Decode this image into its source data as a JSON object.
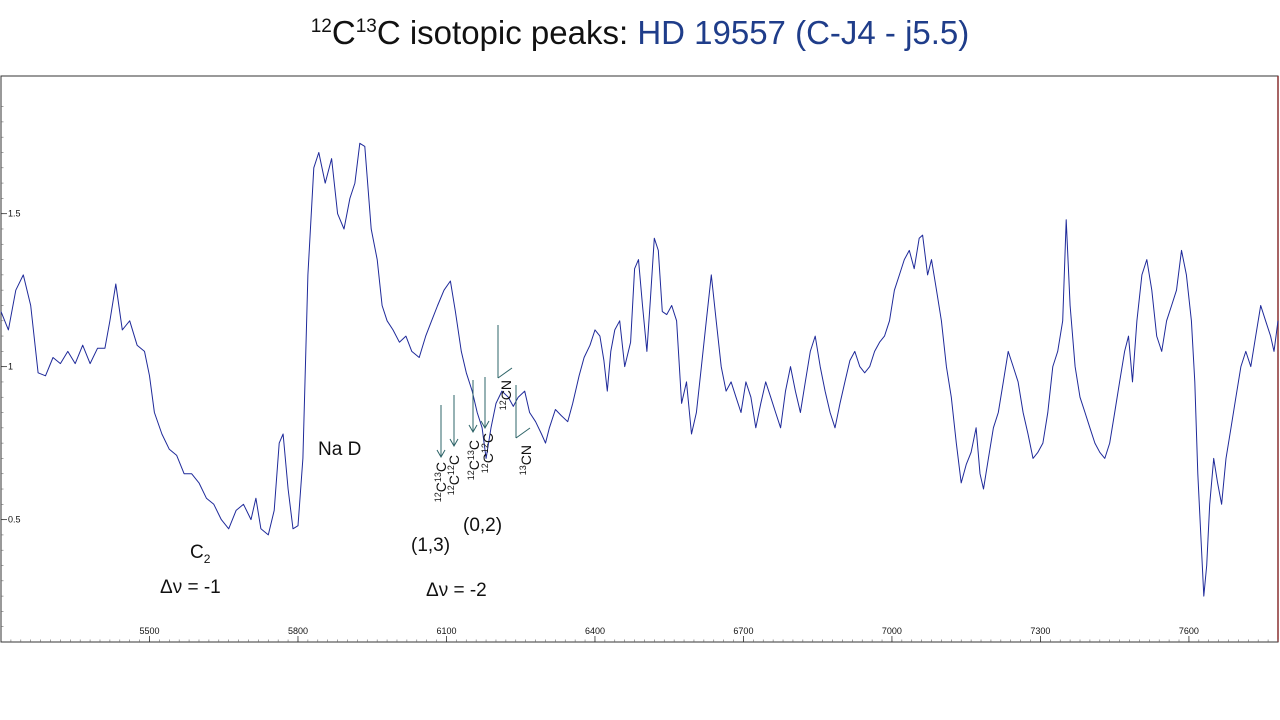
{
  "chart_data": {
    "type": "line",
    "title_parts": [
      {
        "text": "12",
        "sup": true
      },
      {
        "text": "C",
        "sup": false
      },
      {
        "text": "13",
        "sup": true
      },
      {
        "text": "C isotopic peaks: ",
        "sup": false
      }
    ],
    "title_accent": "HD 19557 (C-J4 - j5.5)",
    "xlim": [
      5200,
      7780
    ],
    "ylim": [
      0.1,
      1.95
    ],
    "x_ticks": [
      5500,
      5800,
      6100,
      6400,
      6700,
      7000,
      7300,
      7600
    ],
    "y_ticks": [
      0.5,
      1,
      1.5
    ],
    "y_tick_labels": [
      "0.5",
      "1",
      "1.5"
    ],
    "colors": {
      "line": "#1f2a9a",
      "arrow": "#2e6468",
      "accent": "#1f3d8a"
    },
    "series": [
      {
        "points": [
          [
            5200,
            1.18
          ],
          [
            5215,
            1.12
          ],
          [
            5230,
            1.25
          ],
          [
            5245,
            1.3
          ],
          [
            5260,
            1.2
          ],
          [
            5275,
            0.98
          ],
          [
            5290,
            0.97
          ],
          [
            5305,
            1.03
          ],
          [
            5320,
            1.01
          ],
          [
            5335,
            1.05
          ],
          [
            5350,
            1.01
          ],
          [
            5365,
            1.07
          ],
          [
            5380,
            1.01
          ],
          [
            5395,
            1.06
          ],
          [
            5410,
            1.06
          ],
          [
            5420,
            1.15
          ],
          [
            5432,
            1.27
          ],
          [
            5445,
            1.12
          ],
          [
            5460,
            1.15
          ],
          [
            5475,
            1.07
          ],
          [
            5490,
            1.05
          ],
          [
            5500,
            0.97
          ],
          [
            5510,
            0.85
          ],
          [
            5525,
            0.78
          ],
          [
            5540,
            0.73
          ],
          [
            5555,
            0.71
          ],
          [
            5570,
            0.65
          ],
          [
            5585,
            0.65
          ],
          [
            5600,
            0.62
          ],
          [
            5615,
            0.57
          ],
          [
            5630,
            0.55
          ],
          [
            5645,
            0.5
          ],
          [
            5660,
            0.47
          ],
          [
            5675,
            0.53
          ],
          [
            5690,
            0.55
          ],
          [
            5705,
            0.5
          ],
          [
            5715,
            0.57
          ],
          [
            5725,
            0.47
          ],
          [
            5740,
            0.45
          ],
          [
            5752,
            0.53
          ],
          [
            5762,
            0.75
          ],
          [
            5770,
            0.78
          ],
          [
            5780,
            0.6
          ],
          [
            5790,
            0.47
          ],
          [
            5800,
            0.48
          ],
          [
            5810,
            0.7
          ],
          [
            5820,
            1.3
          ],
          [
            5832,
            1.65
          ],
          [
            5842,
            1.7
          ],
          [
            5855,
            1.6
          ],
          [
            5868,
            1.68
          ],
          [
            5880,
            1.5
          ],
          [
            5893,
            1.45
          ],
          [
            5905,
            1.55
          ],
          [
            5915,
            1.6
          ],
          [
            5925,
            1.73
          ],
          [
            5935,
            1.72
          ],
          [
            5948,
            1.45
          ],
          [
            5960,
            1.35
          ],
          [
            5970,
            1.2
          ],
          [
            5980,
            1.15
          ],
          [
            5992,
            1.12
          ],
          [
            6005,
            1.08
          ],
          [
            6018,
            1.1
          ],
          [
            6030,
            1.05
          ],
          [
            6045,
            1.03
          ],
          [
            6058,
            1.1
          ],
          [
            6070,
            1.15
          ],
          [
            6082,
            1.2
          ],
          [
            6095,
            1.25
          ],
          [
            6108,
            1.28
          ],
          [
            6118,
            1.18
          ],
          [
            6130,
            1.05
          ],
          [
            6140,
            0.98
          ],
          [
            6152,
            0.92
          ],
          [
            6162,
            0.85
          ],
          [
            6172,
            0.8
          ],
          [
            6180,
            0.7
          ],
          [
            6190,
            0.8
          ],
          [
            6200,
            0.88
          ],
          [
            6212,
            0.92
          ],
          [
            6225,
            0.9
          ],
          [
            6235,
            0.87
          ],
          [
            6245,
            0.9
          ],
          [
            6258,
            0.92
          ],
          [
            6268,
            0.85
          ],
          [
            6280,
            0.82
          ],
          [
            6292,
            0.78
          ],
          [
            6300,
            0.75
          ],
          [
            6308,
            0.8
          ],
          [
            6320,
            0.86
          ],
          [
            6332,
            0.84
          ],
          [
            6345,
            0.82
          ],
          [
            6355,
            0.88
          ],
          [
            6368,
            0.97
          ],
          [
            6378,
            1.03
          ],
          [
            6390,
            1.07
          ],
          [
            6400,
            1.12
          ],
          [
            6410,
            1.1
          ],
          [
            6418,
            1.02
          ],
          [
            6425,
            0.92
          ],
          [
            6432,
            1.05
          ],
          [
            6440,
            1.12
          ],
          [
            6450,
            1.15
          ],
          [
            6460,
            1.0
          ],
          [
            6472,
            1.08
          ],
          [
            6480,
            1.32
          ],
          [
            6488,
            1.35
          ],
          [
            6496,
            1.2
          ],
          [
            6505,
            1.05
          ],
          [
            6512,
            1.22
          ],
          [
            6520,
            1.42
          ],
          [
            6528,
            1.38
          ],
          [
            6536,
            1.18
          ],
          [
            6545,
            1.17
          ],
          [
            6555,
            1.2
          ],
          [
            6565,
            1.15
          ],
          [
            6575,
            0.88
          ],
          [
            6585,
            0.95
          ],
          [
            6595,
            0.78
          ],
          [
            6605,
            0.85
          ],
          [
            6615,
            1.0
          ],
          [
            6625,
            1.15
          ],
          [
            6635,
            1.3
          ],
          [
            6645,
            1.15
          ],
          [
            6655,
            1.0
          ],
          [
            6665,
            0.92
          ],
          [
            6675,
            0.95
          ],
          [
            6685,
            0.9
          ],
          [
            6695,
            0.85
          ],
          [
            6705,
            0.95
          ],
          [
            6715,
            0.9
          ],
          [
            6725,
            0.8
          ],
          [
            6735,
            0.88
          ],
          [
            6745,
            0.95
          ],
          [
            6755,
            0.9
          ],
          [
            6765,
            0.85
          ],
          [
            6775,
            0.8
          ],
          [
            6785,
            0.92
          ],
          [
            6795,
            1.0
          ],
          [
            6805,
            0.92
          ],
          [
            6815,
            0.85
          ],
          [
            6825,
            0.95
          ],
          [
            6835,
            1.05
          ],
          [
            6845,
            1.1
          ],
          [
            6855,
            1.0
          ],
          [
            6865,
            0.92
          ],
          [
            6875,
            0.85
          ],
          [
            6885,
            0.8
          ],
          [
            6895,
            0.88
          ],
          [
            6905,
            0.95
          ],
          [
            6915,
            1.02
          ],
          [
            6925,
            1.05
          ],
          [
            6935,
            1.0
          ],
          [
            6945,
            0.98
          ],
          [
            6955,
            1.0
          ],
          [
            6965,
            1.05
          ],
          [
            6975,
            1.08
          ],
          [
            6985,
            1.1
          ],
          [
            6995,
            1.15
          ],
          [
            7005,
            1.25
          ],
          [
            7015,
            1.3
          ],
          [
            7025,
            1.35
          ],
          [
            7035,
            1.38
          ],
          [
            7045,
            1.32
          ],
          [
            7055,
            1.42
          ],
          [
            7062,
            1.43
          ],
          [
            7072,
            1.3
          ],
          [
            7080,
            1.35
          ],
          [
            7090,
            1.25
          ],
          [
            7100,
            1.15
          ],
          [
            7110,
            1.0
          ],
          [
            7120,
            0.9
          ],
          [
            7130,
            0.75
          ],
          [
            7140,
            0.62
          ],
          [
            7150,
            0.68
          ],
          [
            7160,
            0.72
          ],
          [
            7170,
            0.8
          ],
          [
            7178,
            0.65
          ],
          [
            7185,
            0.6
          ],
          [
            7195,
            0.7
          ],
          [
            7205,
            0.8
          ],
          [
            7215,
            0.85
          ],
          [
            7225,
            0.95
          ],
          [
            7235,
            1.05
          ],
          [
            7245,
            1.0
          ],
          [
            7255,
            0.95
          ],
          [
            7265,
            0.85
          ],
          [
            7275,
            0.78
          ],
          [
            7285,
            0.7
          ],
          [
            7295,
            0.72
          ],
          [
            7305,
            0.75
          ],
          [
            7315,
            0.85
          ],
          [
            7325,
            1.0
          ],
          [
            7335,
            1.05
          ],
          [
            7345,
            1.15
          ],
          [
            7352,
            1.48
          ],
          [
            7360,
            1.2
          ],
          [
            7370,
            1.0
          ],
          [
            7380,
            0.9
          ],
          [
            7390,
            0.85
          ],
          [
            7400,
            0.8
          ],
          [
            7410,
            0.75
          ],
          [
            7420,
            0.72
          ],
          [
            7430,
            0.7
          ],
          [
            7440,
            0.75
          ],
          [
            7450,
            0.85
          ],
          [
            7460,
            0.95
          ],
          [
            7470,
            1.05
          ],
          [
            7478,
            1.1
          ],
          [
            7486,
            0.95
          ],
          [
            7495,
            1.15
          ],
          [
            7505,
            1.3
          ],
          [
            7515,
            1.35
          ],
          [
            7525,
            1.25
          ],
          [
            7535,
            1.1
          ],
          [
            7545,
            1.05
          ],
          [
            7555,
            1.15
          ],
          [
            7565,
            1.2
          ],
          [
            7575,
            1.25
          ],
          [
            7585,
            1.38
          ],
          [
            7595,
            1.3
          ],
          [
            7605,
            1.15
          ],
          [
            7612,
            0.95
          ],
          [
            7618,
            0.65
          ],
          [
            7624,
            0.45
          ],
          [
            7630,
            0.25
          ],
          [
            7636,
            0.35
          ],
          [
            7642,
            0.55
          ],
          [
            7650,
            0.7
          ],
          [
            7658,
            0.62
          ],
          [
            7666,
            0.55
          ],
          [
            7675,
            0.7
          ],
          [
            7685,
            0.8
          ],
          [
            7695,
            0.9
          ],
          [
            7705,
            1.0
          ],
          [
            7715,
            1.05
          ],
          [
            7725,
            1.0
          ],
          [
            7735,
            1.1
          ],
          [
            7745,
            1.2
          ],
          [
            7755,
            1.15
          ],
          [
            7765,
            1.1
          ],
          [
            7772,
            1.05
          ],
          [
            7780,
            1.15
          ]
        ]
      }
    ],
    "annotations": {
      "c2_label_main": "C",
      "c2_label_sub": "2",
      "c2_dv": "Δν = -1",
      "nad": "Na D",
      "band_13": "(1,3)",
      "band_02": "(0,2)",
      "dv2": "Δν = -2",
      "iso": [
        {
          "a": "12",
          "b": "C",
          "c": "13",
          "d": "C"
        },
        {
          "a": "12",
          "b": "C",
          "c": "12",
          "d": "C"
        },
        {
          "a": "12",
          "b": "C",
          "c": "13",
          "d": "C"
        },
        {
          "a": "12",
          "b": "C",
          "c": "12",
          "d": "C"
        },
        {
          "a": "12",
          "b": "CN",
          "c": "",
          "d": ""
        },
        {
          "a": "13",
          "b": "CN",
          "c": "",
          "d": ""
        }
      ]
    }
  }
}
